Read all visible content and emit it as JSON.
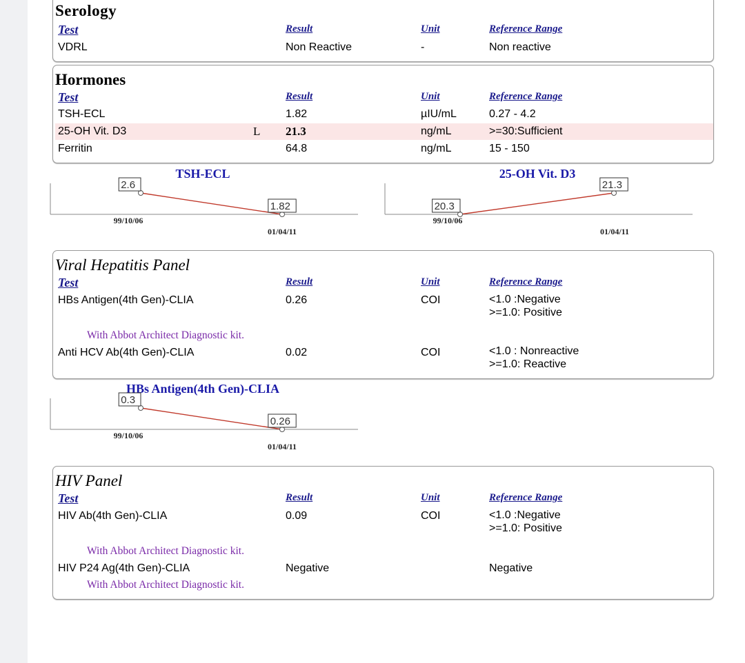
{
  "headers": {
    "test": "Test",
    "result": "Result",
    "unit": "Unit",
    "ref": "Reference Range"
  },
  "serology": {
    "title": "Serology",
    "rows": [
      {
        "test": "VDRL",
        "result": "Non Reactive",
        "unit": "-",
        "ref": "Non reactive"
      }
    ]
  },
  "hormones": {
    "title": "Hormones",
    "rows": [
      {
        "test": "TSH-ECL",
        "flag": "",
        "result": "1.82",
        "unit": "µIU/mL",
        "ref": "0.27 - 4.2"
      },
      {
        "test": "25-OH Vit. D3",
        "flag": "L",
        "result": "21.3",
        "unit": "ng/mL",
        "ref": ">=30:Sufficient"
      },
      {
        "test": "Ferritin",
        "flag": "",
        "result": "64.8",
        "unit": "ng/mL",
        "ref": "15 - 150"
      }
    ]
  },
  "viral": {
    "title": "Viral Hepatitis Panel",
    "rows": [
      {
        "test": "HBs Antigen(4th Gen)-CLIA",
        "result": "0.26",
        "unit": "COI",
        "ref1": "<1.0 :Negative",
        "ref2": ">=1.0: Positive"
      },
      {
        "test": "Anti HCV Ab(4th Gen)-CLIA",
        "result": "0.02",
        "unit": "COI",
        "ref1": "<1.0 : Nonreactive",
        "ref2": ">=1.0: Reactive"
      }
    ],
    "note": "With Abbot Architect Diagnostic kit."
  },
  "hiv": {
    "title": "HIV Panel",
    "rows": [
      {
        "test": "HIV Ab(4th Gen)-CLIA",
        "result": "0.09",
        "unit": "COI",
        "ref1": "<1.0 :Negative",
        "ref2": ">=1.0: Positive"
      },
      {
        "test": "HIV P24 Ag(4th Gen)-CLIA",
        "result": "Negative",
        "unit": "",
        "ref1": "Negative"
      }
    ],
    "note1": "With Abbot Architect Diagnostic kit.",
    "note2": "With Abbot Architect Diagnostic kit."
  },
  "colors": {
    "trend_line": "#c0392b",
    "chart_title": "#1a1aa8",
    "note": "#7a2aa8",
    "highlight": "#fbe6e6"
  },
  "chart_data": [
    {
      "type": "line",
      "title": "TSH-ECL",
      "x": [
        "99/10/06",
        "01/04/11"
      ],
      "values": [
        2.6,
        1.82
      ]
    },
    {
      "type": "line",
      "title": "25-OH Vit. D3",
      "x": [
        "99/10/06",
        "01/04/11"
      ],
      "values": [
        20.3,
        21.3
      ]
    },
    {
      "type": "line",
      "title": "HBs Antigen(4th Gen)-CLIA",
      "x": [
        "99/10/06",
        "01/04/11"
      ],
      "values": [
        0.3,
        0.26
      ]
    }
  ]
}
